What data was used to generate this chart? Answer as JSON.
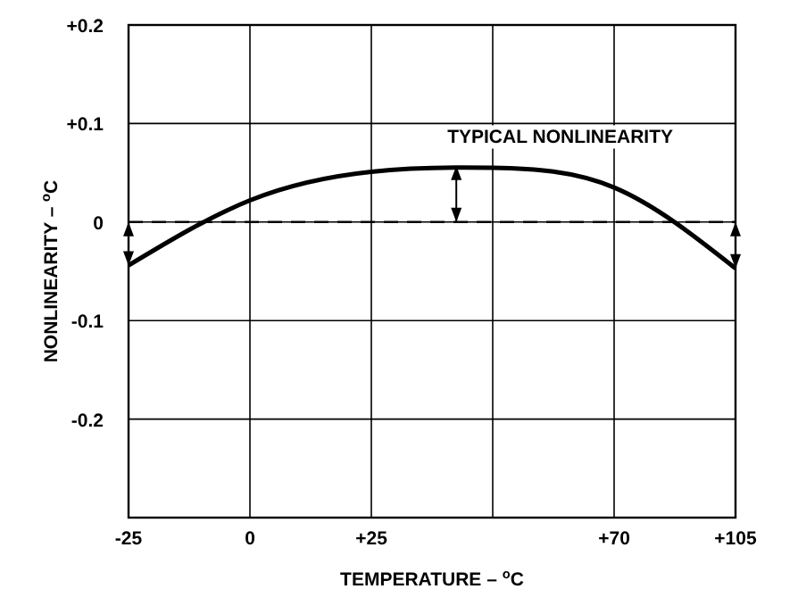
{
  "chart_data": {
    "type": "line",
    "xlabel": "TEMPERATURE – $^{o}$C",
    "ylabel": "NONLINEARITY – $^{o}$C",
    "categories": [
      "-25",
      "0",
      "+25",
      null,
      "+70",
      "+105"
    ],
    "series": [
      {
        "color": "#000000",
        "values": [
          -0.044,
          0.022,
          0.051,
          0.055,
          0.035,
          -0.047
        ]
      }
    ],
    "ylim": [
      -0.3,
      0.2
    ],
    "yticks": [
      {
        "value": 0.2,
        "label": "+0.2"
      },
      {
        "value": 0.1,
        "label": "+0.1"
      },
      0,
      -0.1,
      -0.2
    ],
    "grid": true,
    "marker": "none",
    "line_style": "solid",
    "ref_lines": [
      {
        "axis": "y",
        "value": 0,
        "line_style": "dashed"
      }
    ],
    "annotations": [
      "TYPICAL NONLINEARITY"
    ]
  }
}
